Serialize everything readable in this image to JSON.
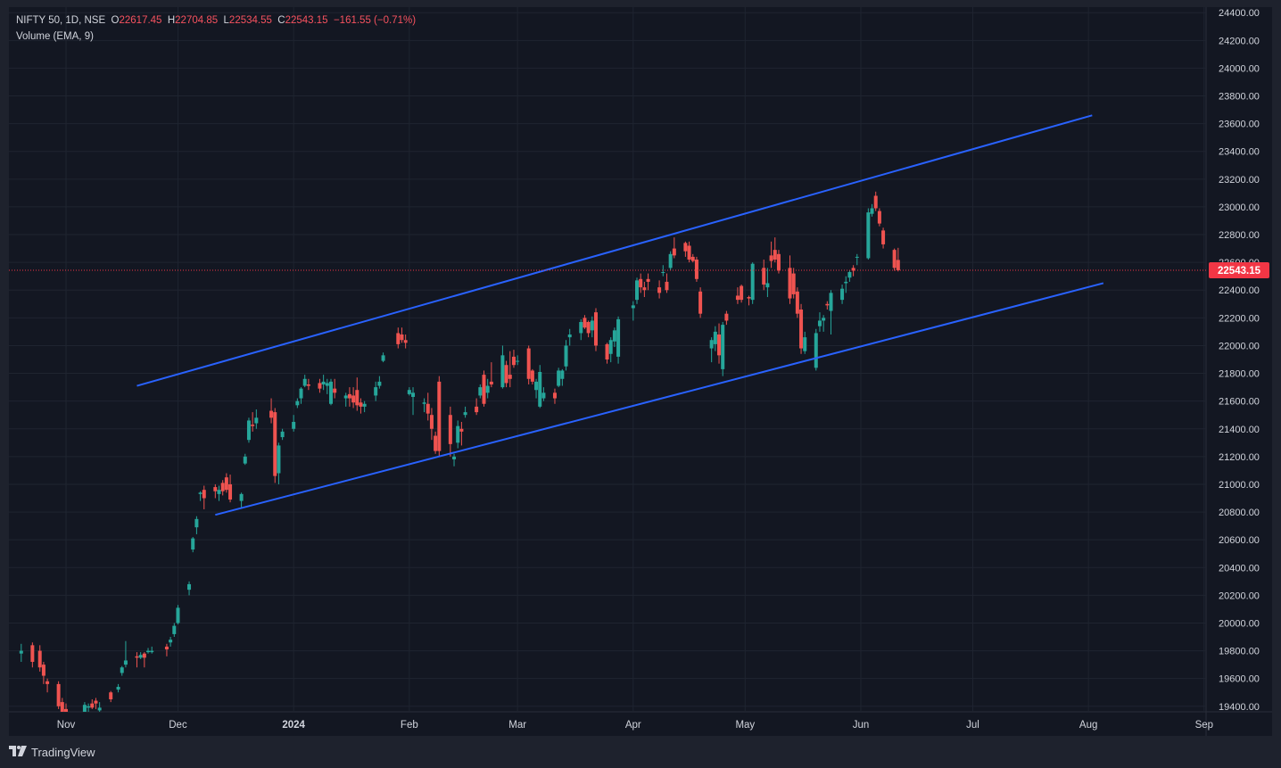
{
  "header": {
    "symbol": "NIFTY 50, 1D, NSE",
    "o_label": "O",
    "o_value": "22617.45",
    "h_label": "H",
    "h_value": "22704.85",
    "l_label": "L",
    "l_value": "22534.55",
    "c_label": "C",
    "c_value": "22543.15",
    "change": "−161.55 (−0.71%)",
    "indicator": "Volume (EMA, 9)"
  },
  "last_price_label": "22543.15",
  "branding": {
    "logo_text": "TradingView",
    "mark": "17"
  },
  "colors": {
    "up": "#26a69a",
    "down": "#ef5350",
    "channel": "#2962ff",
    "background": "#131722",
    "text": "#d1d4dc",
    "grid": "#1f2430",
    "last_price": "#f23645"
  },
  "chart_data": {
    "type": "candlestick",
    "title": "NIFTY 50, 1D, NSE",
    "y_ticks": [
      "24400.00",
      "24200.00",
      "24000.00",
      "23800.00",
      "23600.00",
      "23400.00",
      "23200.00",
      "23000.00",
      "22800.00",
      "22600.00",
      "22400.00",
      "22200.00",
      "22000.00",
      "21800.00",
      "21600.00",
      "21400.00",
      "21200.00",
      "21000.00",
      "20800.00",
      "20600.00",
      "20400.00",
      "20200.00",
      "20000.00",
      "19800.00",
      "19600.00",
      "19400.00"
    ],
    "y_tick_values": [
      24400,
      24200,
      24000,
      23800,
      23600,
      23400,
      23200,
      23000,
      22800,
      22600,
      22400,
      22200,
      22000,
      21800,
      21600,
      21400,
      21200,
      21000,
      20800,
      20600,
      20400,
      20200,
      20000,
      19800,
      19600,
      19400
    ],
    "ylim": [
      19360,
      24440
    ],
    "x_ticks": [
      {
        "label": "Nov",
        "date": "2023-11-01"
      },
      {
        "label": "Dec",
        "date": "2023-12-01"
      },
      {
        "label": "2024",
        "date": "2024-01-01",
        "bold": true
      },
      {
        "label": "Feb",
        "date": "2024-02-01"
      },
      {
        "label": "Mar",
        "date": "2024-03-01"
      },
      {
        "label": "Apr",
        "date": "2024-04-01"
      },
      {
        "label": "May",
        "date": "2024-05-01"
      },
      {
        "label": "Jun",
        "date": "2024-06-01"
      },
      {
        "label": "Jul",
        "date": "2024-07-01"
      },
      {
        "label": "Aug",
        "date": "2024-08-01"
      },
      {
        "label": "Sep",
        "date": "2024-09-01"
      }
    ],
    "last_price": 22543.15,
    "grid": true,
    "trendlines": [
      {
        "name": "upper channel",
        "from": {
          "date": "2023-11-20",
          "price": 21710
        },
        "to": {
          "date": "2024-08-02",
          "price": 23660
        }
      },
      {
        "name": "lower channel",
        "from": {
          "date": "2023-12-11",
          "price": 20780
        },
        "to": {
          "date": "2024-08-05",
          "price": 22450
        }
      }
    ],
    "candles": [
      [
        "2023-10-20",
        19780,
        19850,
        19720,
        19800
      ],
      [
        "2023-10-23",
        19840,
        19860,
        19680,
        19720
      ],
      [
        "2023-10-25",
        19800,
        19840,
        19650,
        19680
      ],
      [
        "2023-10-26",
        19700,
        19720,
        19560,
        19620
      ],
      [
        "2023-10-27",
        19580,
        19600,
        19500,
        19560
      ],
      [
        "2023-10-30",
        19560,
        19580,
        19380,
        19400
      ],
      [
        "2023-10-31",
        19430,
        19460,
        19320,
        19360
      ],
      [
        "2023-11-01",
        19380,
        19420,
        19300,
        19350
      ],
      [
        "2023-11-02",
        19300,
        19360,
        19250,
        19340
      ],
      [
        "2023-11-03",
        19280,
        19310,
        19200,
        19230
      ],
      [
        "2023-11-06",
        19330,
        19430,
        19320,
        19410
      ],
      [
        "2023-11-07",
        19390,
        19420,
        19360,
        19400
      ],
      [
        "2023-11-08",
        19420,
        19450,
        19380,
        19390
      ],
      [
        "2023-11-09",
        19440,
        19460,
        19380,
        19420
      ],
      [
        "2023-11-10",
        19370,
        19430,
        19310,
        19390
      ],
      [
        "2023-11-13",
        19500,
        19510,
        19430,
        19450
      ],
      [
        "2023-11-15",
        19520,
        19560,
        19500,
        19540
      ],
      [
        "2023-11-16",
        19640,
        19690,
        19620,
        19680
      ],
      [
        "2023-11-17",
        19700,
        19870,
        19680,
        19730
      ],
      [
        "2023-11-20",
        19760,
        19790,
        19680,
        19750
      ],
      [
        "2023-11-21",
        19750,
        19790,
        19740,
        19770
      ],
      [
        "2023-11-22",
        19780,
        19790,
        19680,
        19750
      ],
      [
        "2023-11-23",
        19790,
        19820,
        19780,
        19800
      ],
      [
        "2023-11-24",
        19790,
        19830,
        19780,
        19800
      ],
      [
        "2023-11-28",
        19830,
        19850,
        19760,
        19810
      ],
      [
        "2023-11-29",
        19860,
        19900,
        19830,
        19880
      ],
      [
        "2023-11-30",
        19920,
        20000,
        19900,
        19980
      ],
      [
        "2023-12-01",
        20000,
        20130,
        19990,
        20110
      ],
      [
        "2023-12-04",
        20240,
        20300,
        20200,
        20280
      ],
      [
        "2023-12-05",
        20530,
        20620,
        20510,
        20610
      ],
      [
        "2023-12-06",
        20690,
        20770,
        20640,
        20750
      ],
      [
        "2023-12-07",
        20930,
        20950,
        20880,
        20940
      ],
      [
        "2023-12-08",
        20960,
        20990,
        20820,
        20900
      ],
      [
        "2023-12-11",
        20980,
        21000,
        20900,
        20950
      ],
      [
        "2023-12-12",
        20930,
        20990,
        20880,
        20960
      ],
      [
        "2023-12-13",
        21010,
        21030,
        20920,
        20950
      ],
      [
        "2023-12-14",
        21050,
        21080,
        20940,
        20960
      ],
      [
        "2023-12-15",
        21000,
        21070,
        20870,
        20890
      ],
      [
        "2023-12-18",
        20880,
        20940,
        20830,
        20930
      ],
      [
        "2023-12-19",
        21150,
        21220,
        21140,
        21200
      ],
      [
        "2023-12-20",
        21320,
        21480,
        21300,
        21460
      ],
      [
        "2023-12-21",
        21430,
        21520,
        21380,
        21420
      ],
      [
        "2023-12-22",
        21440,
        21540,
        21400,
        21480
      ],
      [
        "2023-12-26",
        21530,
        21620,
        21440,
        21480
      ],
      [
        "2023-12-27",
        21520,
        21550,
        21010,
        21060
      ],
      [
        "2023-12-28",
        21080,
        21300,
        21000,
        21280
      ],
      [
        "2023-12-29",
        21340,
        21400,
        21320,
        21380
      ],
      [
        "2024-01-01",
        21400,
        21500,
        21380,
        21450
      ],
      [
        "2024-01-02",
        21570,
        21620,
        21550,
        21600
      ],
      [
        "2024-01-03",
        21620,
        21700,
        21580,
        21690
      ],
      [
        "2024-01-04",
        21710,
        21790,
        21700,
        21760
      ],
      [
        "2024-01-05",
        21720,
        21760,
        21680,
        21710
      ],
      [
        "2024-01-08",
        21730,
        21760,
        21660,
        21690
      ],
      [
        "2024-01-09",
        21720,
        21790,
        21680,
        21740
      ],
      [
        "2024-01-10",
        21710,
        21760,
        21650,
        21730
      ],
      [
        "2024-01-11",
        21580,
        21760,
        21570,
        21740
      ],
      [
        "2024-01-12",
        21690,
        21760,
        21620,
        21660
      ],
      [
        "2024-01-15",
        21620,
        21660,
        21560,
        21640
      ],
      [
        "2024-01-16",
        21650,
        21700,
        21560,
        21620
      ],
      [
        "2024-01-17",
        21640,
        21700,
        21550,
        21590
      ],
      [
        "2024-01-18",
        21680,
        21770,
        21530,
        21570
      ],
      [
        "2024-01-19",
        21590,
        21620,
        21510,
        21560
      ],
      [
        "2024-01-20",
        21560,
        21600,
        21520,
        21580
      ],
      [
        "2024-01-23",
        21640,
        21740,
        21600,
        21700
      ],
      [
        "2024-01-24",
        21710,
        21780,
        21690,
        21740
      ],
      [
        "2024-01-25",
        21890,
        21950,
        21880,
        21930
      ],
      [
        "2024-01-29",
        22090,
        22130,
        21980,
        22010
      ],
      [
        "2024-01-30",
        22080,
        22130,
        22020,
        22040
      ],
      [
        "2024-01-31",
        22040,
        22080,
        21980,
        22020
      ],
      [
        "2024-02-01",
        21650,
        21700,
        21640,
        21680
      ],
      [
        "2024-02-02",
        21630,
        21700,
        21500,
        21660
      ],
      [
        "2024-02-05",
        21580,
        21620,
        21520,
        21590
      ],
      [
        "2024-02-06",
        21580,
        21660,
        21460,
        21510
      ],
      [
        "2024-02-07",
        21500,
        21550,
        21320,
        21400
      ],
      [
        "2024-02-08",
        21350,
        21380,
        21220,
        21240
      ],
      [
        "2024-02-09",
        21740,
        21780,
        21200,
        21240
      ],
      [
        "2024-02-12",
        21500,
        21560,
        21200,
        21290
      ],
      [
        "2024-02-13",
        21180,
        21220,
        21130,
        21200
      ],
      [
        "2024-02-14",
        21300,
        21460,
        21260,
        21420
      ],
      [
        "2024-02-15",
        21400,
        21450,
        21280,
        21380
      ],
      [
        "2024-02-16",
        21500,
        21560,
        21480,
        21520
      ],
      [
        "2024-02-19",
        21560,
        21620,
        21500,
        21520
      ],
      [
        "2024-02-20",
        21640,
        21720,
        21620,
        21700
      ],
      [
        "2024-02-21",
        21790,
        21820,
        21560,
        21580
      ],
      [
        "2024-02-22",
        21660,
        21760,
        21620,
        21710
      ],
      [
        "2024-02-23",
        21740,
        21880,
        21700,
        21720
      ],
      [
        "2024-02-26",
        21700,
        22000,
        21690,
        21930
      ],
      [
        "2024-02-27",
        21860,
        21890,
        21700,
        21730
      ],
      [
        "2024-02-28",
        21790,
        21960,
        21700,
        21760
      ],
      [
        "2024-02-29",
        21920,
        21970,
        21840,
        21860
      ],
      [
        "2024-03-01",
        21890,
        21930,
        21860,
        21890
      ],
      [
        "2024-03-04",
        21980,
        22000,
        21720,
        21760
      ],
      [
        "2024-03-05",
        21820,
        21830,
        21720,
        21740
      ],
      [
        "2024-03-06",
        21680,
        21760,
        21620,
        21740
      ],
      [
        "2024-03-07",
        21560,
        21860,
        21550,
        21810
      ],
      [
        "2024-03-08",
        21620,
        21700,
        21600,
        21660
      ],
      [
        "2024-03-11",
        21660,
        21690,
        21580,
        21620
      ],
      [
        "2024-03-12",
        21710,
        21840,
        21700,
        21820
      ],
      [
        "2024-03-13",
        21760,
        21830,
        21710,
        21820
      ],
      [
        "2024-03-14",
        21850,
        22040,
        21820,
        22000
      ],
      [
        "2024-03-15",
        22060,
        22120,
        22000,
        22080
      ],
      [
        "2024-03-18",
        22090,
        22190,
        22040,
        22170
      ],
      [
        "2024-03-19",
        22200,
        22220,
        22120,
        22130
      ],
      [
        "2024-03-20",
        22170,
        22180,
        22060,
        22090
      ],
      [
        "2024-03-21",
        22110,
        22210,
        22060,
        22180
      ],
      [
        "2024-03-22",
        22240,
        22270,
        21960,
        22000
      ],
      [
        "2024-03-25",
        22010,
        22020,
        21870,
        21900
      ],
      [
        "2024-03-26",
        21940,
        22060,
        21880,
        22040
      ],
      [
        "2024-03-27",
        22030,
        22130,
        21990,
        22110
      ],
      [
        "2024-03-28",
        21920,
        22210,
        21870,
        22190
      ],
      [
        "2024-04-01",
        22270,
        22320,
        22180,
        22290
      ],
      [
        "2024-04-02",
        22330,
        22490,
        22300,
        22470
      ],
      [
        "2024-04-03",
        22480,
        22520,
        22380,
        22420
      ],
      [
        "2024-04-04",
        22420,
        22460,
        22350,
        22400
      ],
      [
        "2024-04-05",
        22480,
        22520,
        22400,
        22460
      ],
      [
        "2024-04-08",
        22420,
        22470,
        22340,
        22380
      ],
      [
        "2024-04-09",
        22530,
        22580,
        22500,
        22530
      ],
      [
        "2024-04-10",
        22460,
        22520,
        22380,
        22400
      ],
      [
        "2024-04-11",
        22560,
        22680,
        22540,
        22660
      ],
      [
        "2024-04-12",
        22700,
        22780,
        22630,
        22650
      ],
      [
        "2024-04-15",
        22740,
        22750,
        22640,
        22680
      ],
      [
        "2024-04-16",
        22720,
        22750,
        22600,
        22620
      ],
      [
        "2024-04-17",
        22640,
        22660,
        22600,
        22610
      ],
      [
        "2024-04-18",
        22620,
        22640,
        22460,
        22480
      ],
      [
        "2024-04-19",
        22390,
        22420,
        22200,
        22230
      ],
      [
        "2024-04-22",
        21980,
        22060,
        21880,
        22040
      ],
      [
        "2024-04-23",
        22010,
        22140,
        21960,
        22100
      ],
      [
        "2024-04-24",
        22080,
        22160,
        21870,
        21930
      ],
      [
        "2024-04-25",
        21830,
        22170,
        21780,
        22150
      ],
      [
        "2024-04-26",
        22230,
        22250,
        22150,
        22180
      ],
      [
        "2024-04-29",
        22360,
        22420,
        22300,
        22330
      ],
      [
        "2024-04-30",
        22430,
        22440,
        22310,
        22330
      ],
      [
        "2024-05-02",
        22350,
        22360,
        22290,
        22340
      ],
      [
        "2024-05-03",
        22330,
        22600,
        22300,
        22590
      ],
      [
        "2024-05-06",
        22560,
        22620,
        22400,
        22440
      ],
      [
        "2024-05-07",
        22420,
        22560,
        22350,
        22450
      ],
      [
        "2024-05-08",
        22650,
        22750,
        22560,
        22610
      ],
      [
        "2024-05-09",
        22690,
        22780,
        22600,
        22620
      ],
      [
        "2024-05-10",
        22660,
        22690,
        22520,
        22540
      ],
      [
        "2024-05-13",
        22560,
        22650,
        22300,
        22340
      ],
      [
        "2024-05-14",
        22520,
        22560,
        22340,
        22370
      ],
      [
        "2024-05-15",
        22390,
        22420,
        22200,
        22230
      ],
      [
        "2024-05-16",
        22260,
        22300,
        21940,
        21980
      ],
      [
        "2024-05-17",
        21960,
        22100,
        21940,
        22060
      ],
      [
        "2024-05-20",
        21840,
        22120,
        21820,
        22090
      ],
      [
        "2024-05-21",
        22140,
        22240,
        22100,
        22180
      ],
      [
        "2024-05-22",
        22180,
        22220,
        22100,
        22200
      ],
      [
        "2024-05-23",
        22300,
        22320,
        22260,
        22290
      ],
      [
        "2024-05-24",
        22250,
        22400,
        22080,
        22380
      ],
      [
        "2024-05-27",
        22330,
        22440,
        22300,
        22410
      ],
      [
        "2024-05-28",
        22450,
        22500,
        22380,
        22460
      ],
      [
        "2024-05-29",
        22490,
        22540,
        22460,
        22530
      ],
      [
        "2024-05-30",
        22560,
        22580,
        22500,
        22540
      ],
      [
        "2024-05-31",
        22640,
        22660,
        22580,
        22640
      ],
      [
        "2024-06-03",
        22630,
        22990,
        22620,
        22960
      ],
      [
        "2024-06-04",
        22950,
        23020,
        22930,
        22990
      ],
      [
        "2024-06-05",
        23080,
        23110,
        22970,
        22990
      ],
      [
        "2024-06-06",
        22970,
        22990,
        22860,
        22880
      ],
      [
        "2024-06-07",
        22830,
        22850,
        22700,
        22730
      ],
      [
        "2024-06-10",
        22690,
        22700,
        22540,
        22560
      ],
      [
        "2024-06-11",
        22617.45,
        22704.85,
        22534.55,
        22543.15
      ]
    ]
  }
}
